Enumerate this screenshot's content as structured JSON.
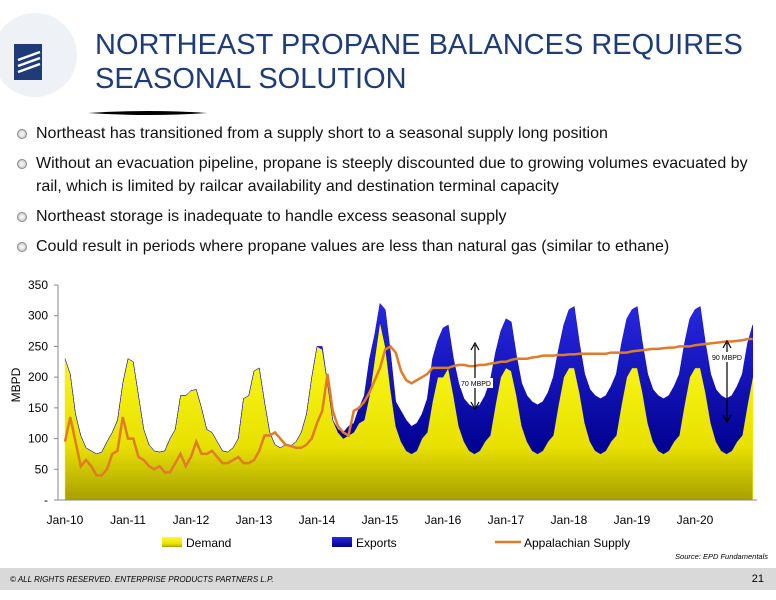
{
  "header": {
    "title": "NORTHEAST PROPANE BALANCES REQUIRES SEASONAL SOLUTION"
  },
  "bullets": [
    "Northeast has transitioned from a supply short to a seasonal supply long position",
    "Without an evacuation pipeline, propane is steeply discounted due to growing volumes evacuated by rail, which is limited by railcar availability and destination terminal capacity",
    "Northeast storage is inadequate to handle excess seasonal supply",
    "Could result in periods where propane values are less than natural gas (similar to ethane)"
  ],
  "chart_data": {
    "type": "stacked-area-line",
    "y_label": "MBPD",
    "categories": [
      "Jan-10",
      null,
      null,
      null,
      null,
      null,
      null,
      null,
      null,
      null,
      null,
      null,
      "Jan-11",
      null,
      null,
      null,
      null,
      null,
      null,
      null,
      null,
      null,
      null,
      null,
      "Jan-12",
      null,
      null,
      null,
      null,
      null,
      null,
      null,
      null,
      null,
      null,
      null,
      "Jan-13",
      null,
      null,
      null,
      null,
      null,
      null,
      null,
      null,
      null,
      null,
      null,
      "Jan-14",
      null,
      null,
      null,
      null,
      null,
      null,
      null,
      null,
      null,
      null,
      null,
      "Jan-15",
      null,
      null,
      null,
      null,
      null,
      null,
      null,
      null,
      null,
      null,
      null,
      "Jan-16",
      null,
      null,
      null,
      null,
      null,
      null,
      null,
      null,
      null,
      null,
      null,
      "Jan-17",
      null,
      null,
      null,
      null,
      null,
      null,
      null,
      null,
      null,
      null,
      null,
      "Jan-18",
      null,
      null,
      null,
      null,
      null,
      null,
      null,
      null,
      null,
      null,
      null,
      "Jan-19",
      null,
      null,
      null,
      null,
      null,
      null,
      null,
      null,
      null,
      null,
      null,
      "Jan-20",
      null,
      null,
      null,
      null,
      null,
      null,
      null,
      null,
      null,
      null,
      null
    ],
    "series": [
      {
        "name": "Demand",
        "color": "#f5f000",
        "kind": "area",
        "values": [
          230,
          205,
          140,
          105,
          85,
          80,
          75,
          78,
          95,
          110,
          130,
          190,
          230,
          225,
          170,
          115,
          90,
          80,
          78,
          80,
          100,
          115,
          170,
          170,
          178,
          180,
          150,
          115,
          110,
          95,
          80,
          78,
          85,
          100,
          165,
          170,
          210,
          215,
          160,
          110,
          90,
          85,
          90,
          88,
          95,
          110,
          140,
          200,
          250,
          245,
          190,
          130,
          110,
          100,
          105,
          110,
          125,
          130,
          170,
          230,
          290,
          250,
          180,
          120,
          95,
          80,
          75,
          80,
          100,
          110,
          160,
          200,
          200,
          215,
          170,
          120,
          95,
          80,
          75,
          80,
          95,
          105,
          155,
          200,
          215,
          210,
          170,
          120,
          95,
          80,
          75,
          80,
          95,
          105,
          155,
          200,
          215,
          215,
          175,
          125,
          95,
          80,
          75,
          80,
          95,
          105,
          155,
          200,
          215,
          215,
          175,
          125,
          95,
          80,
          75,
          80,
          95,
          105,
          155,
          200,
          215,
          215,
          175,
          125,
          95,
          80,
          75,
          80,
          95,
          105,
          155,
          200
        ]
      },
      {
        "name": "Exports",
        "color": "#1010c0",
        "kind": "area",
        "values": [
          0,
          0,
          0,
          0,
          0,
          0,
          0,
          0,
          0,
          0,
          0,
          0,
          0,
          0,
          0,
          0,
          0,
          0,
          0,
          0,
          0,
          0,
          0,
          0,
          0,
          0,
          0,
          0,
          0,
          0,
          0,
          0,
          0,
          0,
          0,
          0,
          0,
          0,
          0,
          0,
          0,
          0,
          0,
          0,
          0,
          0,
          0,
          0,
          0,
          5,
          0,
          0,
          5,
          10,
          15,
          15,
          25,
          40,
          60,
          40,
          30,
          60,
          60,
          40,
          50,
          50,
          45,
          45,
          40,
          55,
          70,
          60,
          80,
          70,
          60,
          70,
          70,
          75,
          75,
          75,
          75,
          90,
          85,
          75,
          80,
          80,
          65,
          70,
          75,
          80,
          80,
          80,
          80,
          95,
          90,
          85,
          95,
          100,
          80,
          80,
          85,
          90,
          90,
          90,
          90,
          100,
          100,
          95,
          95,
          100,
          80,
          80,
          85,
          90,
          90,
          90,
          90,
          100,
          100,
          95,
          95,
          100,
          80,
          80,
          85,
          90,
          90,
          90,
          90,
          100,
          100,
          85
        ]
      },
      {
        "name": "Appalachian Supply",
        "color": "#e07b2a",
        "kind": "line",
        "values": [
          95,
          135,
          95,
          55,
          65,
          55,
          40,
          40,
          50,
          75,
          80,
          135,
          100,
          100,
          70,
          65,
          55,
          50,
          55,
          45,
          45,
          60,
          75,
          55,
          70,
          95,
          75,
          75,
          80,
          70,
          60,
          60,
          65,
          70,
          60,
          60,
          65,
          80,
          105,
          105,
          110,
          100,
          90,
          88,
          85,
          85,
          90,
          100,
          125,
          145,
          205,
          145,
          120,
          110,
          105,
          145,
          150,
          160,
          175,
          195,
          215,
          245,
          250,
          240,
          210,
          195,
          190,
          195,
          200,
          205,
          215,
          215,
          215,
          215,
          218,
          220,
          220,
          218,
          218,
          220,
          220,
          222,
          223,
          225,
          225,
          228,
          230,
          230,
          230,
          232,
          233,
          235,
          235,
          235,
          236,
          236,
          237,
          237,
          238,
          238,
          238,
          238,
          238,
          238,
          240,
          240,
          240,
          240,
          242,
          243,
          244,
          245,
          246,
          246,
          247,
          248,
          248,
          250,
          250,
          250,
          252,
          253,
          254,
          255,
          256,
          257,
          258,
          258,
          259,
          260,
          262,
          262
        ]
      }
    ],
    "ylim": [
      0,
      350
    ],
    "yticks": [
      {
        "value": 0,
        "label": "-"
      },
      50,
      100,
      150,
      200,
      250,
      300,
      350
    ],
    "annotations": [
      "70 MBPD",
      "90 MBPD"
    ],
    "source": "Source:  EPD Fundamentals",
    "legend": "bottom"
  },
  "footer": {
    "text": "© ALL RIGHTS RESERVED. ENTERPRISE PRODUCTS PARTNERS L.P.",
    "page": "21"
  }
}
